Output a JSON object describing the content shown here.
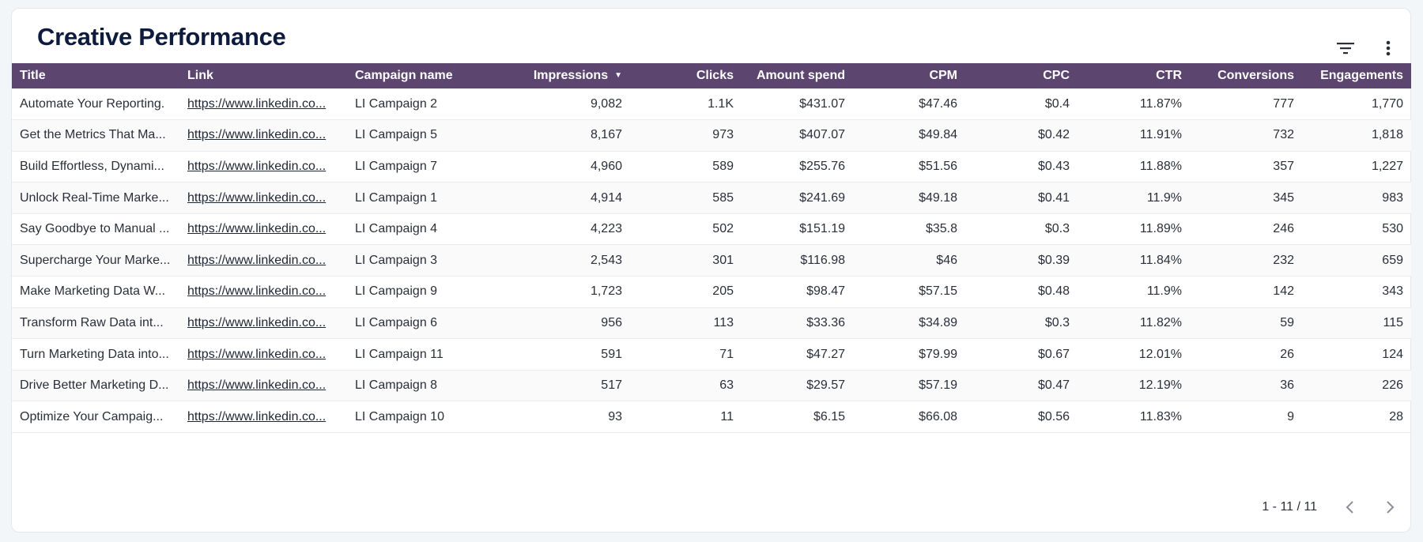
{
  "header": {
    "title": "Creative Performance"
  },
  "icons": {
    "filter": "filter-icon",
    "more": "more-vertical-icon",
    "prev": "chevron-left-icon",
    "next": "chevron-right-icon"
  },
  "colors": {
    "header_bg": "#5c4670",
    "title": "#0d1b3e"
  },
  "table": {
    "columns": [
      {
        "key": "title",
        "label": "Title"
      },
      {
        "key": "link",
        "label": "Link"
      },
      {
        "key": "campaign",
        "label": "Campaign name"
      },
      {
        "key": "impressions",
        "label": "Impressions",
        "sorted": "desc"
      },
      {
        "key": "clicks",
        "label": "Clicks"
      },
      {
        "key": "spend",
        "label": "Amount spend"
      },
      {
        "key": "cpm",
        "label": "CPM"
      },
      {
        "key": "cpc",
        "label": "CPC"
      },
      {
        "key": "ctr",
        "label": "CTR"
      },
      {
        "key": "conversions",
        "label": "Conversions"
      },
      {
        "key": "engagements",
        "label": "Engagements"
      }
    ],
    "rows": [
      {
        "title": "Automate Your Reporting.",
        "link": "https://www.linkedin.co...",
        "campaign": "LI Campaign 2",
        "impressions": "9,082",
        "clicks": "1.1K",
        "spend": "$431.07",
        "cpm": "$47.46",
        "cpc": "$0.4",
        "ctr": "11.87%",
        "conversions": "777",
        "engagements": "1,770"
      },
      {
        "title": "Get the Metrics That Ma...",
        "link": "https://www.linkedin.co...",
        "campaign": "LI Campaign 5",
        "impressions": "8,167",
        "clicks": "973",
        "spend": "$407.07",
        "cpm": "$49.84",
        "cpc": "$0.42",
        "ctr": "11.91%",
        "conversions": "732",
        "engagements": "1,818"
      },
      {
        "title": "Build Effortless, Dynami...",
        "link": "https://www.linkedin.co...",
        "campaign": "LI Campaign 7",
        "impressions": "4,960",
        "clicks": "589",
        "spend": "$255.76",
        "cpm": "$51.56",
        "cpc": "$0.43",
        "ctr": "11.88%",
        "conversions": "357",
        "engagements": "1,227"
      },
      {
        "title": "Unlock Real-Time Marke...",
        "link": "https://www.linkedin.co...",
        "campaign": "LI Campaign 1",
        "impressions": "4,914",
        "clicks": "585",
        "spend": "$241.69",
        "cpm": "$49.18",
        "cpc": "$0.41",
        "ctr": "11.9%",
        "conversions": "345",
        "engagements": "983"
      },
      {
        "title": "Say Goodbye to Manual ...",
        "link": "https://www.linkedin.co...",
        "campaign": "LI Campaign 4",
        "impressions": "4,223",
        "clicks": "502",
        "spend": "$151.19",
        "cpm": "$35.8",
        "cpc": "$0.3",
        "ctr": "11.89%",
        "conversions": "246",
        "engagements": "530"
      },
      {
        "title": "Supercharge Your Marke...",
        "link": "https://www.linkedin.co...",
        "campaign": "LI Campaign 3",
        "impressions": "2,543",
        "clicks": "301",
        "spend": "$116.98",
        "cpm": "$46",
        "cpc": "$0.39",
        "ctr": "11.84%",
        "conversions": "232",
        "engagements": "659"
      },
      {
        "title": "Make Marketing Data W...",
        "link": "https://www.linkedin.co...",
        "campaign": "LI Campaign 9",
        "impressions": "1,723",
        "clicks": "205",
        "spend": "$98.47",
        "cpm": "$57.15",
        "cpc": "$0.48",
        "ctr": "11.9%",
        "conversions": "142",
        "engagements": "343"
      },
      {
        "title": "Transform Raw Data int...",
        "link": "https://www.linkedin.co...",
        "campaign": "LI Campaign 6",
        "impressions": "956",
        "clicks": "113",
        "spend": "$33.36",
        "cpm": "$34.89",
        "cpc": "$0.3",
        "ctr": "11.82%",
        "conversions": "59",
        "engagements": "115"
      },
      {
        "title": "Turn Marketing Data into...",
        "link": "https://www.linkedin.co...",
        "campaign": "LI Campaign 11",
        "impressions": "591",
        "clicks": "71",
        "spend": "$47.27",
        "cpm": "$79.99",
        "cpc": "$0.67",
        "ctr": "12.01%",
        "conversions": "26",
        "engagements": "124"
      },
      {
        "title": "Drive Better Marketing D...",
        "link": "https://www.linkedin.co...",
        "campaign": "LI Campaign 8",
        "impressions": "517",
        "clicks": "63",
        "spend": "$29.57",
        "cpm": "$57.19",
        "cpc": "$0.47",
        "ctr": "12.19%",
        "conversions": "36",
        "engagements": "226"
      },
      {
        "title": "Optimize Your Campaig...",
        "link": "https://www.linkedin.co...",
        "campaign": "LI Campaign 10",
        "impressions": "93",
        "clicks": "11",
        "spend": "$6.15",
        "cpm": "$66.08",
        "cpc": "$0.56",
        "ctr": "11.83%",
        "conversions": "9",
        "engagements": "28"
      }
    ]
  },
  "pagination": {
    "range": "1 - 11 / 11"
  }
}
